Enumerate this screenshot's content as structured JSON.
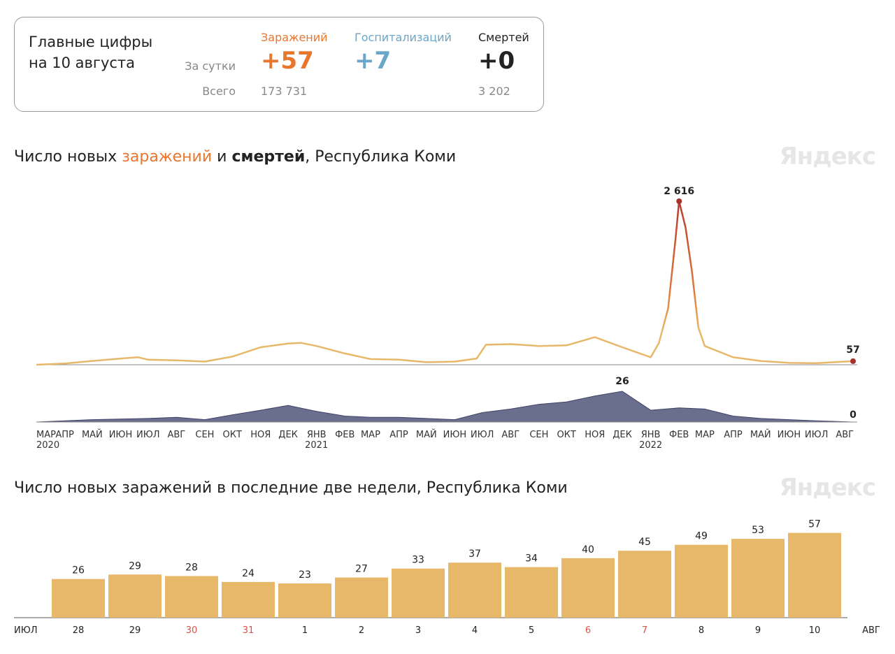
{
  "summary": {
    "title": "Главные цифры на 10 августа",
    "per_day_label": "За сутки",
    "total_label": "Всего",
    "infections": {
      "label": "Заражений",
      "day": "+57",
      "total": "173 731",
      "color": "#e8772e"
    },
    "hospitalizations": {
      "label": "Госпитализаций",
      "day": "+7",
      "total": "",
      "color": "#6aa6c8"
    },
    "deaths": {
      "label": "Смертей",
      "day": "+0",
      "total": "3 202",
      "color": "#222222"
    }
  },
  "chart1": {
    "title_parts": [
      "Число новых ",
      "заражений",
      " и ",
      "смертей",
      ", Республика Коми"
    ],
    "watermark": "Яндекс"
  },
  "chart2": {
    "title": "Число новых заражений в последние две недели, Республика Коми",
    "watermark": "Яндекс"
  },
  "chart_data": [
    {
      "type": "area",
      "series": [
        {
          "name": "заражений",
          "color": "#e8b86a",
          "peak_color": "#b83a2e",
          "peak_label": "2 616",
          "last_label": "57",
          "points": [
            [
              "2020-03-01",
              0
            ],
            [
              "2020-04-01",
              20
            ],
            [
              "2020-05-01",
              60
            ],
            [
              "2020-06-01",
              100
            ],
            [
              "2020-06-20",
              120
            ],
            [
              "2020-07-01",
              80
            ],
            [
              "2020-08-01",
              70
            ],
            [
              "2020-09-01",
              50
            ],
            [
              "2020-10-01",
              130
            ],
            [
              "2020-11-01",
              280
            ],
            [
              "2020-12-01",
              340
            ],
            [
              "2020-12-15",
              350
            ],
            [
              "2021-01-01",
              300
            ],
            [
              "2021-02-01",
              180
            ],
            [
              "2021-03-01",
              90
            ],
            [
              "2021-04-01",
              80
            ],
            [
              "2021-05-01",
              40
            ],
            [
              "2021-06-01",
              50
            ],
            [
              "2021-06-25",
              100
            ],
            [
              "2021-07-05",
              320
            ],
            [
              "2021-08-01",
              330
            ],
            [
              "2021-09-01",
              300
            ],
            [
              "2021-10-01",
              310
            ],
            [
              "2021-11-01",
              440
            ],
            [
              "2021-12-01",
              280
            ],
            [
              "2022-01-01",
              120
            ],
            [
              "2022-01-10",
              350
            ],
            [
              "2022-01-20",
              900
            ],
            [
              "2022-01-28",
              2000
            ],
            [
              "2022-02-01",
              2616
            ],
            [
              "2022-02-08",
              2200
            ],
            [
              "2022-02-15",
              1500
            ],
            [
              "2022-02-22",
              600
            ],
            [
              "2022-03-01",
              300
            ],
            [
              "2022-04-01",
              120
            ],
            [
              "2022-05-01",
              60
            ],
            [
              "2022-06-01",
              30
            ],
            [
              "2022-07-01",
              25
            ],
            [
              "2022-08-10",
              57
            ]
          ]
        },
        {
          "name": "смертей",
          "color": "#5b5f82",
          "peak_label": "26",
          "last_label": "0",
          "points": [
            [
              "2020-03-01",
              0
            ],
            [
              "2020-05-01",
              2
            ],
            [
              "2020-07-01",
              3
            ],
            [
              "2020-08-01",
              4
            ],
            [
              "2020-09-01",
              2
            ],
            [
              "2020-10-01",
              6
            ],
            [
              "2020-11-01",
              10
            ],
            [
              "2020-12-01",
              14
            ],
            [
              "2021-01-01",
              9
            ],
            [
              "2021-02-01",
              5
            ],
            [
              "2021-03-01",
              4
            ],
            [
              "2021-04-01",
              4
            ],
            [
              "2021-05-01",
              3
            ],
            [
              "2021-06-01",
              2
            ],
            [
              "2021-07-01",
              8
            ],
            [
              "2021-08-01",
              11
            ],
            [
              "2021-09-01",
              15
            ],
            [
              "2021-10-01",
              17
            ],
            [
              "2021-11-01",
              22
            ],
            [
              "2021-12-01",
              26
            ],
            [
              "2022-01-01",
              10
            ],
            [
              "2022-02-01",
              12
            ],
            [
              "2022-03-01",
              11
            ],
            [
              "2022-04-01",
              5
            ],
            [
              "2022-05-01",
              3
            ],
            [
              "2022-06-01",
              2
            ],
            [
              "2022-07-01",
              1
            ],
            [
              "2022-08-10",
              0
            ]
          ]
        }
      ],
      "x_ticks": [
        "МАР",
        "АПР",
        "МАЙ",
        "ИЮН",
        "ИЮЛ",
        "АВГ",
        "СЕН",
        "ОКТ",
        "НОЯ",
        "ДЕК",
        "ЯНВ",
        "ФЕВ",
        "МАР",
        "АПР",
        "МАЙ",
        "ИЮН",
        "ИЮЛ",
        "АВГ",
        "СЕН",
        "ОКТ",
        "НОЯ",
        "ДЕК",
        "ЯНВ",
        "ФЕВ",
        "МАР",
        "АПР",
        "МАЙ",
        "ИЮН",
        "ИЮЛ",
        "АВГ"
      ],
      "x_tick_dates": [
        "2020-03-01",
        "2020-04-01",
        "2020-05-01",
        "2020-06-01",
        "2020-07-01",
        "2020-08-01",
        "2020-09-01",
        "2020-10-01",
        "2020-11-01",
        "2020-12-01",
        "2021-01-01",
        "2021-02-01",
        "2021-03-01",
        "2021-04-01",
        "2021-05-01",
        "2021-06-01",
        "2021-07-01",
        "2021-08-01",
        "2021-09-01",
        "2021-10-01",
        "2021-11-01",
        "2021-12-01",
        "2022-01-01",
        "2022-02-01",
        "2022-03-01",
        "2022-04-01",
        "2022-05-01",
        "2022-06-01",
        "2022-07-01",
        "2022-08-01"
      ],
      "year_labels": [
        [
          "2020-03-01",
          "2020"
        ],
        [
          "2021-01-01",
          "2021"
        ],
        [
          "2022-01-01",
          "2022"
        ]
      ],
      "xlim": [
        "2020-03-01",
        "2022-08-10"
      ]
    },
    {
      "type": "bar",
      "categories": [
        "28",
        "29",
        "30",
        "31",
        "1",
        "2",
        "3",
        "4",
        "5",
        "6",
        "7",
        "8",
        "9",
        "10"
      ],
      "values": [
        26,
        29,
        28,
        24,
        23,
        27,
        33,
        37,
        34,
        40,
        45,
        49,
        53,
        57
      ],
      "weekend_flags": [
        false,
        false,
        true,
        true,
        false,
        false,
        false,
        false,
        false,
        true,
        true,
        false,
        false,
        false
      ],
      "month_left": "ИЮЛ",
      "month_right": "АВГ",
      "bar_color": "#e8b86a",
      "weekend_color": "#d9534a",
      "ylim": [
        0,
        62
      ]
    }
  ]
}
